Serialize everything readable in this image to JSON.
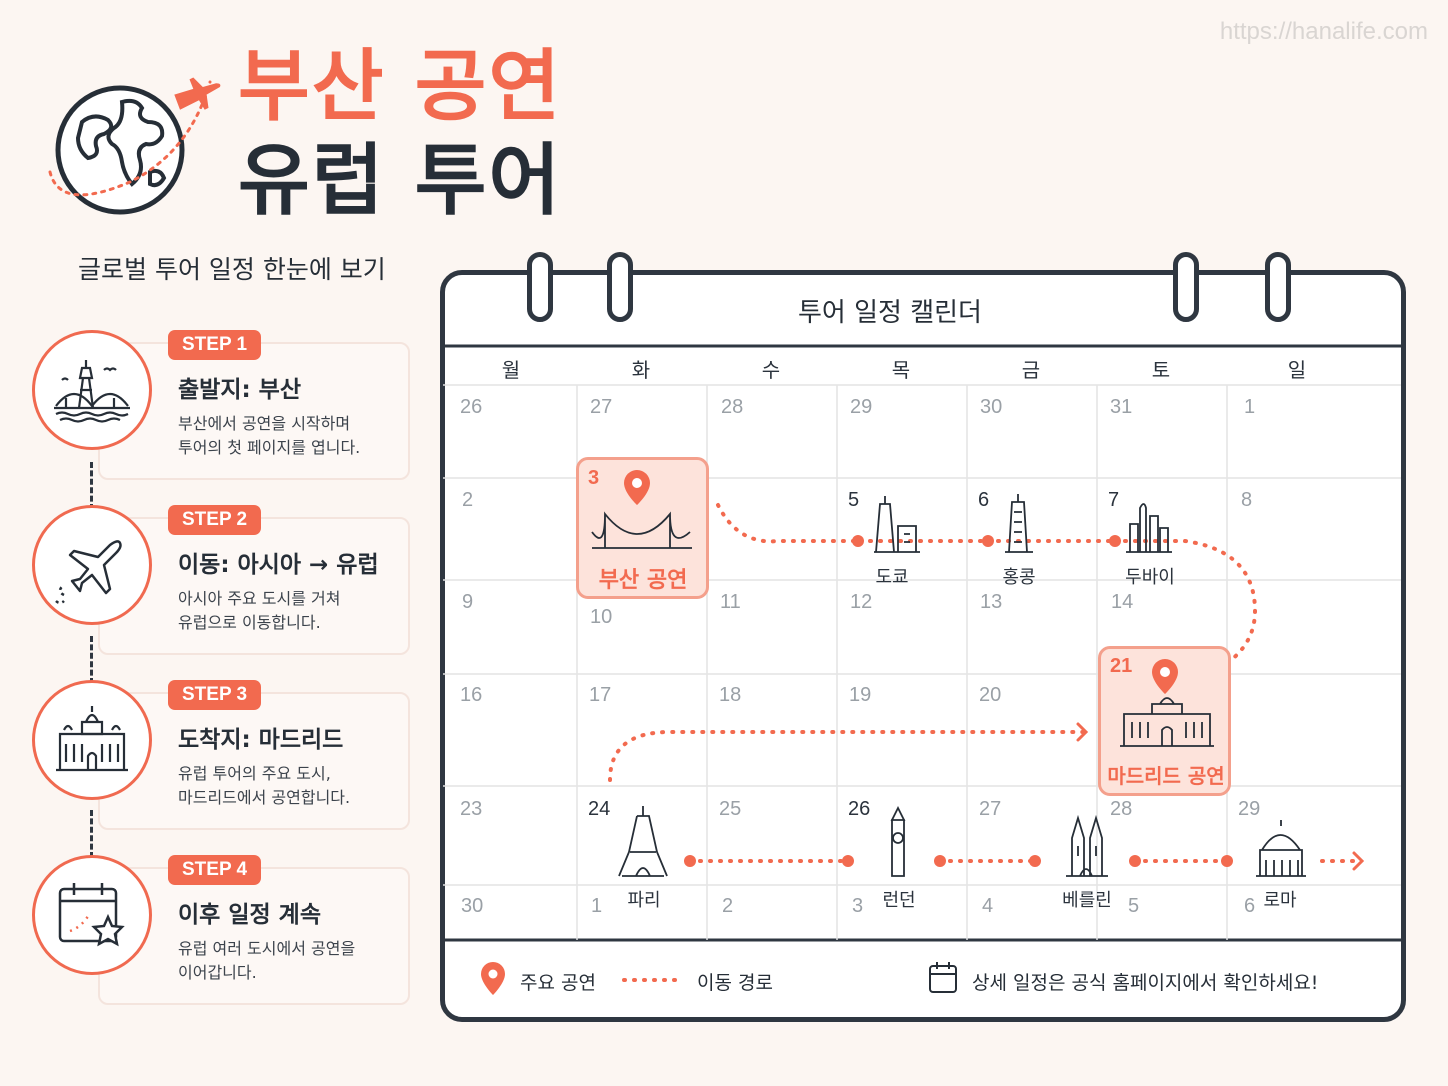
{
  "watermark": "https://hanalife.com",
  "title": {
    "line1": "부산 공연",
    "line2": "유럽 투어"
  },
  "subtitle": "글로벌 투어 일정 한눈에 보기",
  "steps": [
    {
      "badge": "STEP 1",
      "heading": "출발지: 부산",
      "desc1": "부산에서 공연을 시작하며",
      "desc2": "투어의 첫 페이지를 엽니다.",
      "icon": "busan-skyline-icon"
    },
    {
      "badge": "STEP 2",
      "heading": "이동: 아시아 → 유럽",
      "desc1": "아시아 주요 도시를 거쳐",
      "desc2": "유럽으로 이동합니다.",
      "icon": "airplane-icon"
    },
    {
      "badge": "STEP 3",
      "heading": "도착지: 마드리드",
      "desc1": "유럽 투어의 주요 도시,",
      "desc2": "마드리드에서 공연합니다.",
      "icon": "madrid-palace-icon"
    },
    {
      "badge": "STEP 4",
      "heading": "이후 일정 계속",
      "desc1": "유럽 여러 도시에서 공연을",
      "desc2": "이어갑니다.",
      "icon": "calendar-star-icon"
    }
  ],
  "calendar": {
    "title": "투어 일정 캘린더",
    "days": [
      "월",
      "화",
      "수",
      "목",
      "금",
      "토",
      "일"
    ],
    "weeks": [
      [
        "26",
        "27",
        "28",
        "29",
        "30",
        "31",
        "1"
      ],
      [
        "2",
        "3",
        "",
        "5",
        "6",
        "7",
        "8"
      ],
      [
        "9",
        "10",
        "11",
        "12",
        "13",
        "14",
        ""
      ],
      [
        "16",
        "17",
        "18",
        "19",
        "20",
        "21",
        ""
      ],
      [
        "23",
        "24",
        "25",
        "26",
        "27",
        "28",
        "29"
      ],
      [
        "30",
        "1",
        "2",
        "3",
        "4",
        "5",
        "6"
      ]
    ],
    "events": [
      {
        "date": "3",
        "label": "부산 공연"
      },
      {
        "date": "21",
        "label": "마드리드 공연"
      }
    ],
    "cities": [
      "도쿄",
      "홍콩",
      "두바이",
      "파리",
      "런던",
      "베를린",
      "로마"
    ]
  },
  "legend": {
    "main": "주요 공연",
    "route": "이동 경로",
    "note": "상세 일정은 공식 홈페이지에서 확인하세요!"
  },
  "colors": {
    "accent": "#f26a4f",
    "dark": "#262e37",
    "background": "#fcf6f2"
  }
}
